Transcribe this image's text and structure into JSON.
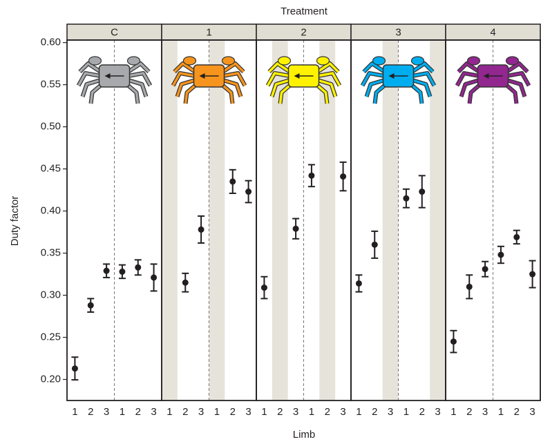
{
  "chart_data": {
    "type": "scatter",
    "title": "Treatment",
    "x_label": "Limb",
    "y_label": "Duty factor",
    "ylim": [
      0.175,
      0.603
    ],
    "yticks": [
      {
        "value": 0.2,
        "label": "0.20"
      },
      0.25,
      {
        "value": 0.3,
        "label": "0.30"
      },
      0.35,
      {
        "value": 0.4,
        "label": "0.40"
      },
      0.45,
      {
        "value": 0.5,
        "label": "0.50"
      },
      0.55,
      {
        "value": 0.6,
        "label": "0.60"
      }
    ],
    "panels": [
      {
        "name": "C",
        "color": "#a7a9ac",
        "categories": [
          "1",
          "2",
          "3",
          "1",
          "2",
          "3"
        ],
        "values": [
          0.213,
          0.288,
          0.329,
          0.328,
          0.333,
          0.321
        ],
        "errors": [
          0.0135,
          0.008,
          0.008,
          0.008,
          0.009,
          0.016
        ]
      },
      {
        "name": "1",
        "color": "#f7941d",
        "categories": [
          "1",
          "2",
          "3",
          "1",
          "2",
          "3"
        ],
        "values": [
          null,
          0.315,
          0.378,
          null,
          0.435,
          0.423
        ],
        "errors": [
          null,
          0.011,
          0.016,
          null,
          0.014,
          0.013
        ]
      },
      {
        "name": "2",
        "color": "#fff200",
        "categories": [
          "1",
          "2",
          "3",
          "1",
          "2",
          "3"
        ],
        "values": [
          0.309,
          null,
          0.379,
          0.442,
          null,
          0.441
        ],
        "errors": [
          0.013,
          null,
          0.012,
          0.013,
          null,
          0.017
        ]
      },
      {
        "name": "3",
        "color": "#00aeef",
        "categories": [
          "1",
          "2",
          "3",
          "1",
          "2",
          "3"
        ],
        "values": [
          0.314,
          0.36,
          null,
          0.415,
          0.423,
          null
        ],
        "errors": [
          0.01,
          0.016,
          null,
          0.011,
          0.019,
          null
        ]
      },
      {
        "name": "4",
        "color": "#92278f",
        "categories": [
          "1",
          "2",
          "3",
          "1",
          "2",
          "3"
        ],
        "values": [
          0.245,
          0.31,
          0.331,
          0.348,
          0.369,
          0.325
        ],
        "errors": [
          0.013,
          0.014,
          0.009,
          0.01,
          0.008,
          0.016
        ]
      }
    ]
  }
}
